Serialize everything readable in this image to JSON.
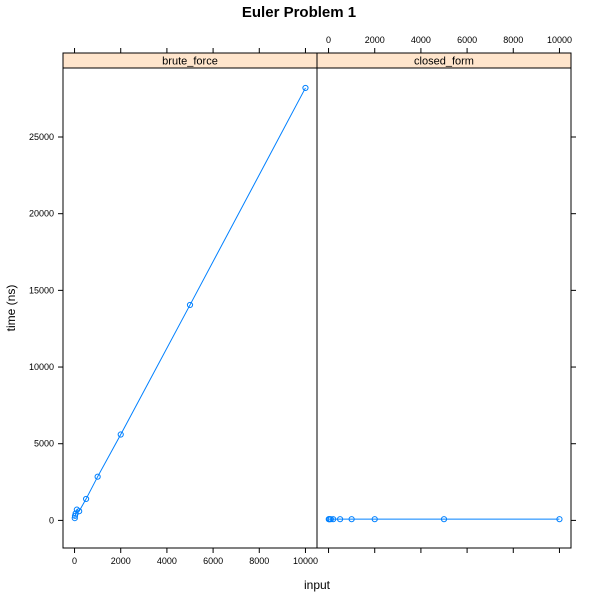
{
  "chart_data": {
    "type": "line",
    "title": "Euler Problem 1",
    "xlabel": "input",
    "ylabel": "time (ns)",
    "xlim": [
      -500,
      10500
    ],
    "ylim": [
      -1800,
      29500
    ],
    "x_ticks": [
      0,
      2000,
      4000,
      6000,
      8000,
      10000
    ],
    "y_ticks": [
      0,
      5000,
      10000,
      15000,
      20000,
      25000
    ],
    "grid": false,
    "legend": "none",
    "series_color": "#0080ff",
    "strip_color": "#ffe5cc",
    "panels": [
      {
        "name": "brute_force",
        "x": [
          10,
          20,
          50,
          100,
          200,
          500,
          1000,
          2000,
          5000,
          10000
        ],
        "y": [
          150,
          300,
          450,
          700,
          600,
          1400,
          2850,
          5600,
          14050,
          28200
        ]
      },
      {
        "name": "closed_form",
        "x": [
          10,
          20,
          50,
          100,
          200,
          500,
          1000,
          2000,
          5000,
          10000
        ],
        "y": [
          80,
          80,
          80,
          80,
          80,
          80,
          80,
          80,
          80,
          80
        ]
      }
    ]
  }
}
